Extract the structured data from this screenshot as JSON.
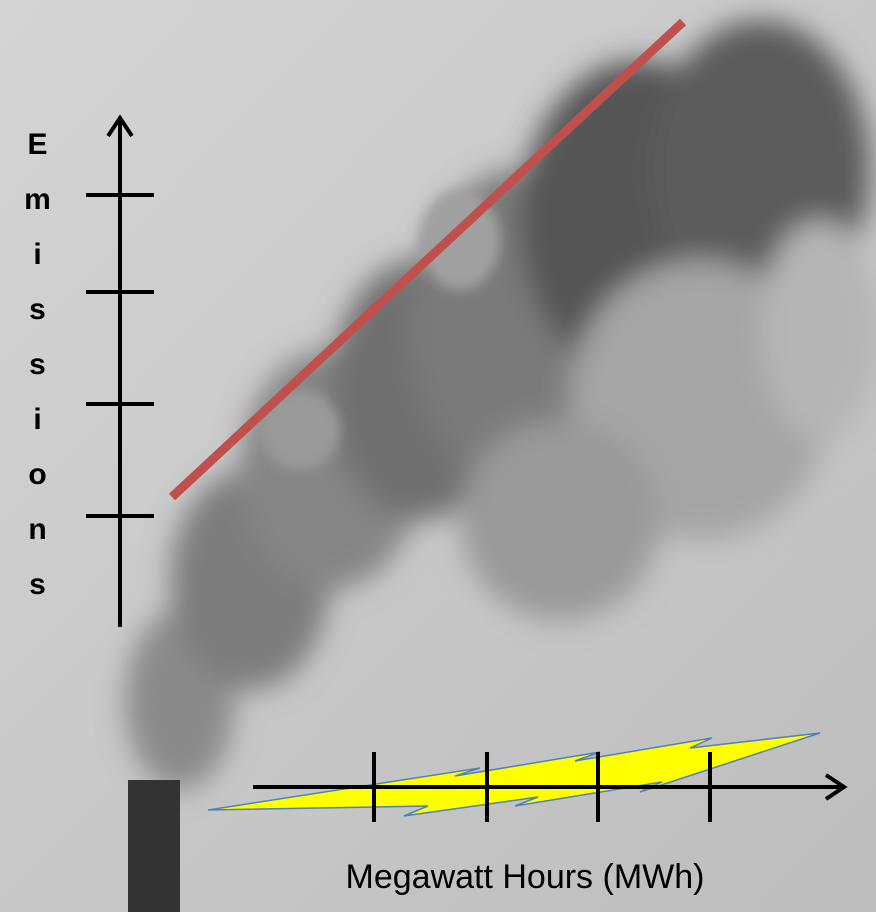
{
  "y_axis_label": "Emissions",
  "x_axis_label": "Megawatt Hours (MWh)"
}
